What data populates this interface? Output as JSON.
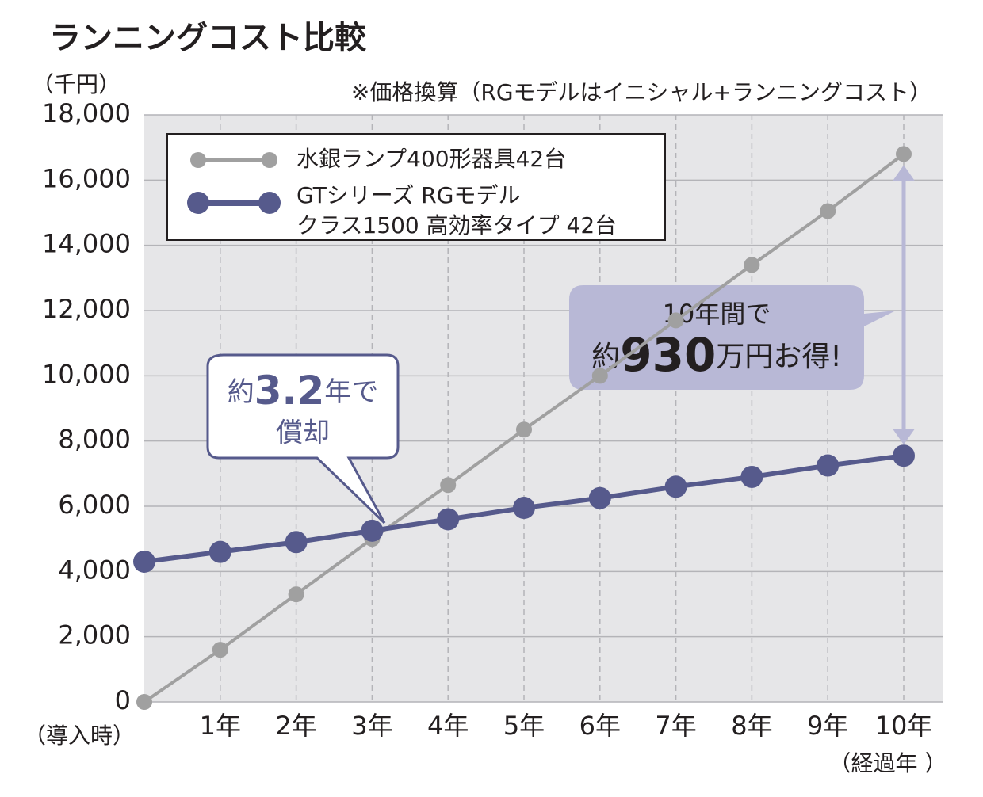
{
  "chart_data": {
    "type": "line",
    "title": "ランニングコスト比較",
    "y_label": "（千円）",
    "note": "※価格換算（RGモデルはイニシャル+ランニングコスト）",
    "x_start_label": "（導入時）",
    "x_label": "（経過年 ）",
    "categories": [
      null,
      "1年",
      "2年",
      "3年",
      "4年",
      "5年",
      "6年",
      "7年",
      "8年",
      "9年",
      "10年"
    ],
    "series": [
      {
        "name": "水銀ランプ400形器具42台",
        "color": "#a0a0a0",
        "values": [
          0,
          1600,
          3300,
          5000,
          6650,
          8350,
          10000,
          11700,
          13400,
          15050,
          16800
        ]
      },
      {
        "name": "GTシリーズ RGモデル\nクラス1500 高効率タイプ 42台",
        "color": "#565a8c",
        "values": [
          4300,
          4600,
          4900,
          5250,
          5600,
          5950,
          6250,
          6600,
          6900,
          7250,
          7550
        ]
      }
    ],
    "ylim": [
      0,
      18000
    ],
    "yticks": [
      0,
      {
        "value": 2000,
        "label": "2,000"
      },
      {
        "value": 4000,
        "label": "4,000"
      },
      {
        "value": 6000,
        "label": "6,000"
      },
      {
        "value": 8000,
        "label": "8,000"
      },
      {
        "value": 10000,
        "label": "10,000"
      },
      {
        "value": 12000,
        "label": "12,000"
      },
      {
        "value": 14000,
        "label": "14,000"
      },
      {
        "value": 16000,
        "label": "16,000"
      },
      {
        "value": 18000,
        "label": "18,000"
      }
    ],
    "grid": true,
    "legend": "top-left",
    "callout_1": {
      "prefix": "約",
      "number": "3.2",
      "suffix": "年で",
      "line2": "償却"
    },
    "callout_2": {
      "line1": "10年間で",
      "prefix": "約",
      "number": "930",
      "suffix": "万円お得!"
    }
  }
}
